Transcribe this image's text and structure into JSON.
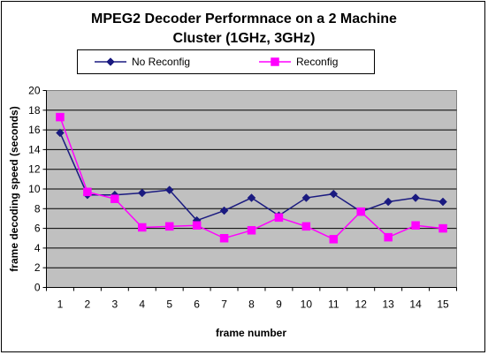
{
  "chart_data": {
    "type": "line",
    "title_line1": "MPEG2 Decoder Performnace on a 2 Machine",
    "title_line2": "Cluster (1GHz, 3GHz)",
    "xlabel": "frame number",
    "ylabel": "frame decoding speed (seconds)",
    "x": [
      1,
      2,
      3,
      4,
      5,
      6,
      7,
      8,
      9,
      10,
      11,
      12,
      13,
      14,
      15
    ],
    "ylim": [
      0,
      20
    ],
    "yticks": [
      0,
      2,
      4,
      6,
      8,
      10,
      12,
      14,
      16,
      18,
      20
    ],
    "grid": "horizontal",
    "legend_position": "top",
    "series": [
      {
        "name": "No Reconfig",
        "color": "#1a1a80",
        "marker": "diamond",
        "values": [
          15.7,
          9.4,
          9.4,
          9.6,
          9.9,
          6.8,
          7.8,
          9.1,
          7.3,
          9.1,
          9.5,
          7.7,
          8.7,
          9.1,
          8.7
        ]
      },
      {
        "name": "Reconfig",
        "color": "#ff00ff",
        "marker": "square",
        "values": [
          17.3,
          9.7,
          9.0,
          6.1,
          6.2,
          6.3,
          5.0,
          5.8,
          7.1,
          6.2,
          4.9,
          7.7,
          5.1,
          6.3,
          6.0
        ]
      }
    ]
  }
}
